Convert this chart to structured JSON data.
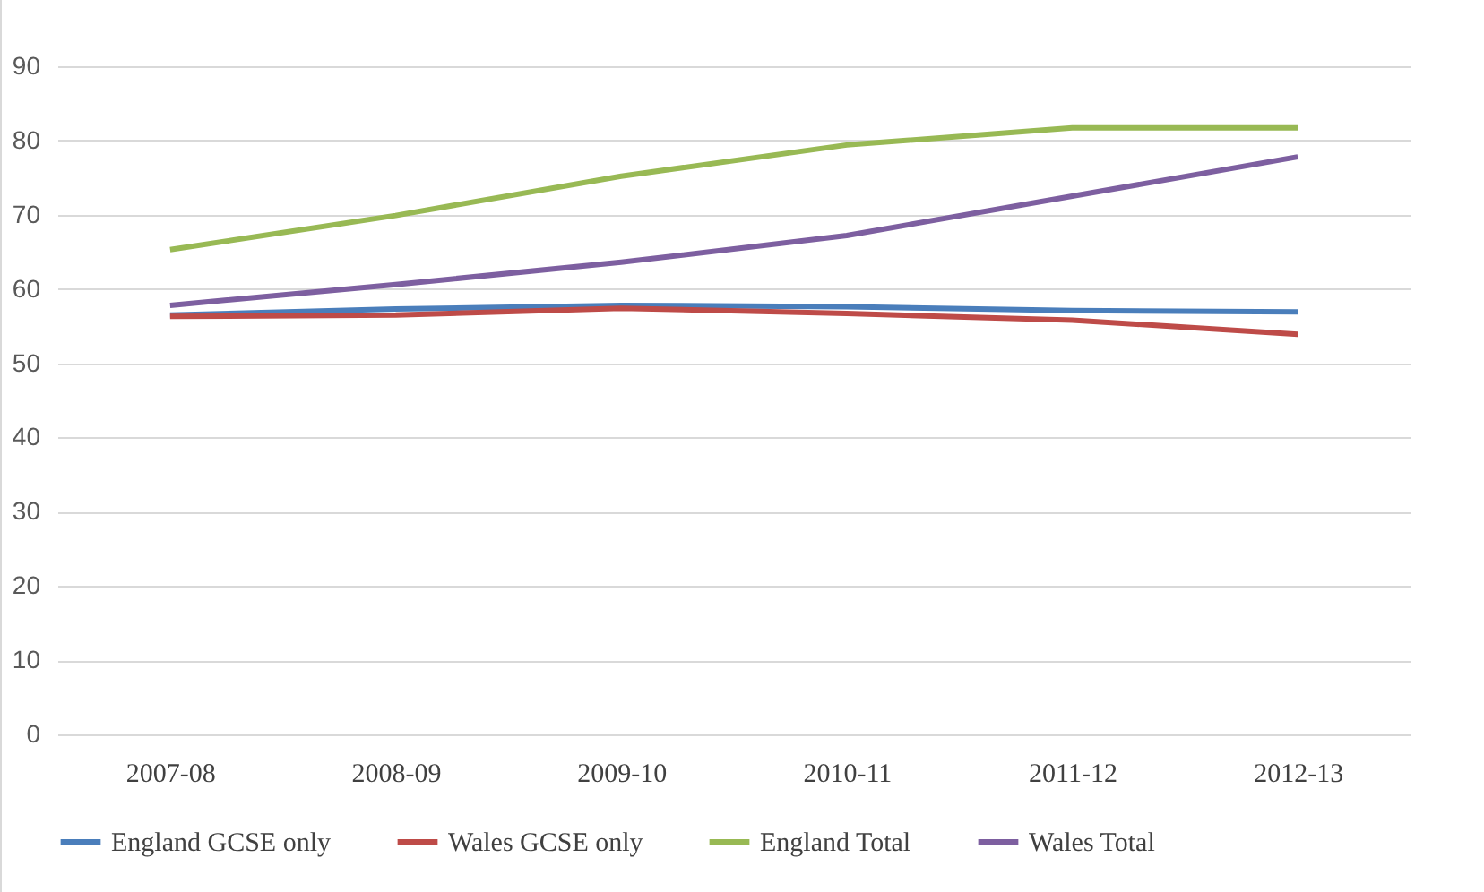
{
  "chart_data": {
    "type": "line",
    "categories": [
      "2007-08",
      "2008-09",
      "2009-10",
      "2010-11",
      "2011-12",
      "2012-13"
    ],
    "series": [
      {
        "name": "England GCSE only",
        "color": "#4a7ebb",
        "values": [
          56.5,
          57.3,
          57.8,
          57.6,
          57.1,
          56.9
        ]
      },
      {
        "name": "Wales GCSE only",
        "color": "#be4b48",
        "values": [
          56.3,
          56.5,
          57.4,
          56.7,
          55.8,
          53.9
        ]
      },
      {
        "name": "England Total",
        "color": "#98b954",
        "values": [
          65.3,
          69.9,
          75.2,
          79.4,
          81.7,
          81.7
        ]
      },
      {
        "name": "Wales Total",
        "color": "#7d5fa0",
        "values": [
          57.8,
          60.6,
          63.6,
          67.2,
          72.5,
          77.8
        ]
      }
    ],
    "ylim": [
      0,
      90
    ],
    "yticks": [
      0,
      10,
      20,
      30,
      40,
      50,
      60,
      70,
      80,
      90
    ],
    "grid": "y",
    "legend": "bottom",
    "marker": "none",
    "line_style": "solid"
  }
}
